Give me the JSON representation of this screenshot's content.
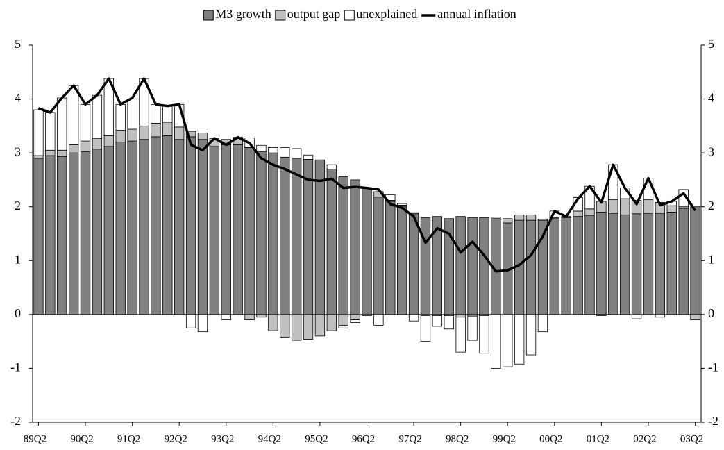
{
  "chart_data": {
    "type": "bar",
    "categories": [
      "89Q2",
      null,
      null,
      null,
      "90Q2",
      null,
      null,
      null,
      "91Q2",
      null,
      null,
      null,
      "92Q2",
      null,
      null,
      null,
      "93Q2",
      null,
      null,
      null,
      "94Q2",
      null,
      null,
      null,
      "95Q2",
      null,
      null,
      null,
      "96Q2",
      null,
      null,
      null,
      "97Q2",
      null,
      null,
      null,
      "98Q2",
      null,
      null,
      null,
      "99Q2",
      null,
      null,
      null,
      "00Q2",
      null,
      null,
      null,
      "01Q2",
      null,
      null,
      null,
      "02Q2",
      null,
      null,
      null,
      "03Q2"
    ],
    "series": [
      {
        "name": "M3 growth",
        "color": "#808080",
        "values": [
          2.9,
          2.95,
          2.93,
          3.0,
          3.02,
          3.07,
          3.12,
          3.2,
          3.22,
          3.25,
          3.3,
          3.32,
          3.25,
          3.3,
          3.25,
          3.12,
          3.15,
          3.15,
          3.1,
          3.02,
          3.0,
          2.92,
          2.9,
          2.88,
          2.87,
          2.7,
          2.56,
          2.5,
          2.35,
          2.18,
          2.1,
          2.0,
          1.87,
          1.8,
          1.82,
          1.78,
          1.82,
          1.8,
          1.8,
          1.78,
          1.7,
          1.75,
          1.75,
          1.75,
          1.78,
          1.8,
          1.82,
          1.84,
          1.9,
          1.88,
          1.85,
          1.87,
          1.88,
          1.88,
          1.9,
          1.97,
          2.0
        ]
      },
      {
        "name": "output gap",
        "color": "#c0c0c0",
        "values": [
          0.05,
          0.1,
          0.12,
          0.15,
          0.2,
          0.2,
          0.2,
          0.22,
          0.22,
          0.25,
          0.25,
          0.25,
          0.23,
          0.1,
          0.12,
          0.15,
          0.1,
          0.12,
          -0.1,
          -0.05,
          -0.3,
          -0.42,
          -0.48,
          -0.46,
          -0.4,
          -0.3,
          -0.2,
          -0.1,
          -0.02,
          0.1,
          0.02,
          0.03,
          0.02,
          -0.02,
          -0.02,
          -0.02,
          -0.05,
          -0.03,
          -0.02,
          0.03,
          0.08,
          0.1,
          0.1,
          0.02,
          0.02,
          0.02,
          0.1,
          0.12,
          0.2,
          0.25,
          0.3,
          0.25,
          0.25,
          0.2,
          0.12,
          0.03,
          -0.1
        ]
      },
      {
        "name": "unexplained",
        "color": "#ffffff",
        "values": [
          0.85,
          0.7,
          0.97,
          1.1,
          0.68,
          0.8,
          1.06,
          0.48,
          0.56,
          0.88,
          0.35,
          0.3,
          0.42,
          -0.25,
          -0.32,
          0.0,
          -0.1,
          0.02,
          0.18,
          0.12,
          0.1,
          0.18,
          0.18,
          0.08,
          0.0,
          0.08,
          -0.05,
          -0.05,
          0.0,
          -0.2,
          0.1,
          0.03,
          -0.12,
          -0.48,
          -0.2,
          -0.25,
          -0.65,
          -0.45,
          -0.7,
          -1.0,
          -0.97,
          -0.92,
          -0.75,
          -0.32,
          0.12,
          0.0,
          0.25,
          0.42,
          -0.02,
          0.65,
          0.2,
          -0.08,
          0.4,
          -0.05,
          0.08,
          0.32,
          0.0
        ]
      },
      {
        "name": "annual inflation",
        "color": "#000000",
        "type": "line",
        "values": [
          3.83,
          3.75,
          4.02,
          4.25,
          3.9,
          4.07,
          4.38,
          3.9,
          4.02,
          4.38,
          3.9,
          3.87,
          3.9,
          3.15,
          3.05,
          3.27,
          3.15,
          3.29,
          3.18,
          2.9,
          2.78,
          2.7,
          2.6,
          2.5,
          2.48,
          2.52,
          2.35,
          2.37,
          2.35,
          2.32,
          2.05,
          1.98,
          1.82,
          1.33,
          1.6,
          1.5,
          1.15,
          1.35,
          1.1,
          0.8,
          0.82,
          0.92,
          1.1,
          1.45,
          1.92,
          1.82,
          2.15,
          2.38,
          2.08,
          2.78,
          2.35,
          2.05,
          2.53,
          2.03,
          2.1,
          2.25,
          1.93
        ]
      }
    ],
    "ylim": [
      -2,
      5
    ],
    "yticks": [
      -2,
      -1,
      0,
      1,
      2,
      3,
      4,
      5
    ],
    "y2lim": [
      -2,
      5
    ],
    "y2ticks": [
      -2,
      -1,
      0,
      1,
      2,
      3,
      4,
      5
    ],
    "stacked": true,
    "legend": "top"
  }
}
